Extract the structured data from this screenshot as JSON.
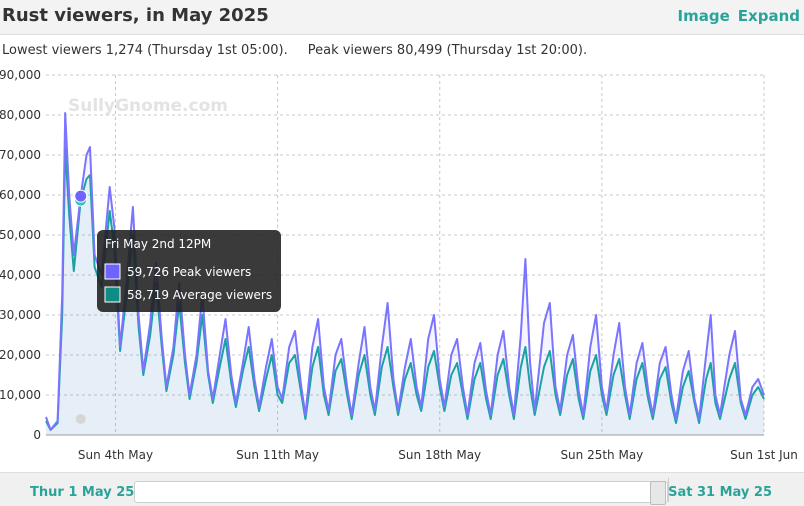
{
  "header": {
    "title": "Rust viewers, in May 2025",
    "links": {
      "image": "Image",
      "expand": "Expand"
    }
  },
  "summary": {
    "lowest": "Lowest viewers 1,274 (Thursday 1st 05:00).",
    "peak": "Peak viewers 80,499 (Thursday 1st 20:00)."
  },
  "watermark": "SullyGnome.com",
  "navigator": {
    "start_label": "Thur 1 May 25",
    "end_label": "Sat 31 May 25"
  },
  "colors": {
    "peak_series": "#7b74ff",
    "average_series": "#14a69b",
    "accent": "#2aa39a"
  },
  "tooltip": {
    "title": "Fri May 2nd 12PM",
    "rows": [
      {
        "value": "59,726",
        "label": "Peak viewers",
        "color": "#6f63ff"
      },
      {
        "value": "58,719",
        "label": "Average viewers",
        "color": "#0f8c84"
      }
    ]
  },
  "chart_data": {
    "type": "line",
    "x_unit": "day of May 2025 (1 = Thu 1 May 00:00)",
    "xlim": [
      1,
      32
    ],
    "ylim": [
      0,
      90000
    ],
    "y_ticks": [
      "0",
      "10,000",
      "20,000",
      "30,000",
      "40,000",
      "50,000",
      "60,000",
      "70,000",
      "80,000",
      "90,000"
    ],
    "x_ticks": [
      {
        "x": 4,
        "label": "Sun 4th May"
      },
      {
        "x": 11,
        "label": "Sun 11th May"
      },
      {
        "x": 18,
        "label": "Sun 18th May"
      },
      {
        "x": 25,
        "label": "Sun 25th May"
      },
      {
        "x": 32,
        "label": "Sun 1st Jun"
      }
    ],
    "grid": true,
    "series": [
      {
        "name": "Peak viewers",
        "points": [
          [
            1.0,
            4500
          ],
          [
            1.2,
            1274
          ],
          [
            1.5,
            3500
          ],
          [
            1.7,
            35000
          ],
          [
            1.83,
            80499
          ],
          [
            2.0,
            60000
          ],
          [
            2.2,
            45000
          ],
          [
            2.5,
            59726
          ],
          [
            2.75,
            70000
          ],
          [
            2.9,
            72000
          ],
          [
            3.1,
            45000
          ],
          [
            3.4,
            40000
          ],
          [
            3.75,
            62000
          ],
          [
            3.95,
            52000
          ],
          [
            4.2,
            22000
          ],
          [
            4.5,
            40000
          ],
          [
            4.75,
            57000
          ],
          [
            5.0,
            30000
          ],
          [
            5.2,
            16000
          ],
          [
            5.5,
            28000
          ],
          [
            5.75,
            43000
          ],
          [
            6.0,
            24000
          ],
          [
            6.2,
            12000
          ],
          [
            6.5,
            22000
          ],
          [
            6.75,
            38000
          ],
          [
            7.0,
            20000
          ],
          [
            7.2,
            10000
          ],
          [
            7.5,
            20000
          ],
          [
            7.75,
            35000
          ],
          [
            8.0,
            16000
          ],
          [
            8.2,
            9000
          ],
          [
            8.5,
            20000
          ],
          [
            8.75,
            29000
          ],
          [
            9.0,
            15000
          ],
          [
            9.2,
            8000
          ],
          [
            9.5,
            18000
          ],
          [
            9.75,
            27000
          ],
          [
            10.0,
            14000
          ],
          [
            10.2,
            7000
          ],
          [
            10.5,
            17000
          ],
          [
            10.75,
            24000
          ],
          [
            11.0,
            12000
          ],
          [
            11.2,
            9000
          ],
          [
            11.5,
            22000
          ],
          [
            11.75,
            26000
          ],
          [
            12.0,
            13000
          ],
          [
            12.2,
            5000
          ],
          [
            12.5,
            22000
          ],
          [
            12.75,
            29000
          ],
          [
            13.0,
            12000
          ],
          [
            13.2,
            6000
          ],
          [
            13.5,
            20000
          ],
          [
            13.75,
            24000
          ],
          [
            14.0,
            12000
          ],
          [
            14.2,
            5000
          ],
          [
            14.5,
            18000
          ],
          [
            14.75,
            27000
          ],
          [
            15.0,
            12000
          ],
          [
            15.2,
            6000
          ],
          [
            15.5,
            22000
          ],
          [
            15.75,
            33000
          ],
          [
            16.0,
            14000
          ],
          [
            16.2,
            6000
          ],
          [
            16.5,
            17000
          ],
          [
            16.75,
            24000
          ],
          [
            17.0,
            12000
          ],
          [
            17.2,
            7000
          ],
          [
            17.5,
            24000
          ],
          [
            17.75,
            30000
          ],
          [
            18.0,
            14000
          ],
          [
            18.2,
            7000
          ],
          [
            18.5,
            20000
          ],
          [
            18.75,
            24000
          ],
          [
            19.0,
            12000
          ],
          [
            19.2,
            5000
          ],
          [
            19.5,
            18000
          ],
          [
            19.75,
            23000
          ],
          [
            20.0,
            11000
          ],
          [
            20.2,
            5000
          ],
          [
            20.5,
            20000
          ],
          [
            20.75,
            26000
          ],
          [
            21.0,
            12000
          ],
          [
            21.2,
            5000
          ],
          [
            21.5,
            25000
          ],
          [
            21.7,
            44000
          ],
          [
            21.9,
            18000
          ],
          [
            22.1,
            6000
          ],
          [
            22.5,
            28000
          ],
          [
            22.75,
            33000
          ],
          [
            23.0,
            12000
          ],
          [
            23.2,
            6000
          ],
          [
            23.5,
            20000
          ],
          [
            23.75,
            25000
          ],
          [
            24.0,
            11000
          ],
          [
            24.2,
            5000
          ],
          [
            24.5,
            22000
          ],
          [
            24.75,
            30000
          ],
          [
            25.0,
            12000
          ],
          [
            25.2,
            6000
          ],
          [
            25.5,
            20000
          ],
          [
            25.75,
            28000
          ],
          [
            26.0,
            12000
          ],
          [
            26.2,
            5000
          ],
          [
            26.5,
            18000
          ],
          [
            26.75,
            23000
          ],
          [
            27.0,
            11000
          ],
          [
            27.2,
            5000
          ],
          [
            27.5,
            18000
          ],
          [
            27.75,
            22000
          ],
          [
            28.0,
            10000
          ],
          [
            28.2,
            4000
          ],
          [
            28.5,
            16000
          ],
          [
            28.75,
            21000
          ],
          [
            29.0,
            9000
          ],
          [
            29.2,
            4000
          ],
          [
            29.5,
            20000
          ],
          [
            29.7,
            30000
          ],
          [
            29.9,
            10000
          ],
          [
            30.1,
            5000
          ],
          [
            30.5,
            20000
          ],
          [
            30.75,
            26000
          ],
          [
            31.0,
            9000
          ],
          [
            31.2,
            5000
          ],
          [
            31.5,
            12000
          ],
          [
            31.75,
            14000
          ],
          [
            32.0,
            10000
          ]
        ]
      },
      {
        "name": "Average viewers",
        "points": [
          [
            1.0,
            3500
          ],
          [
            1.2,
            1274
          ],
          [
            1.5,
            3000
          ],
          [
            1.7,
            30000
          ],
          [
            1.83,
            72000
          ],
          [
            2.0,
            55000
          ],
          [
            2.2,
            41000
          ],
          [
            2.5,
            58719
          ],
          [
            2.75,
            64000
          ],
          [
            2.9,
            65000
          ],
          [
            3.1,
            42000
          ],
          [
            3.4,
            37000
          ],
          [
            3.75,
            56000
          ],
          [
            3.95,
            47000
          ],
          [
            4.2,
            21000
          ],
          [
            4.5,
            36000
          ],
          [
            4.75,
            50000
          ],
          [
            5.0,
            27000
          ],
          [
            5.2,
            15000
          ],
          [
            5.5,
            25000
          ],
          [
            5.75,
            38000
          ],
          [
            6.0,
            22000
          ],
          [
            6.2,
            11000
          ],
          [
            6.5,
            20000
          ],
          [
            6.75,
            33000
          ],
          [
            7.0,
            18000
          ],
          [
            7.2,
            9000
          ],
          [
            7.5,
            18000
          ],
          [
            7.75,
            30000
          ],
          [
            8.0,
            15000
          ],
          [
            8.2,
            8000
          ],
          [
            8.5,
            17000
          ],
          [
            8.75,
            24000
          ],
          [
            9.0,
            13000
          ],
          [
            9.2,
            7000
          ],
          [
            9.5,
            16000
          ],
          [
            9.75,
            22000
          ],
          [
            10.0,
            12000
          ],
          [
            10.2,
            6000
          ],
          [
            10.5,
            14000
          ],
          [
            10.75,
            20000
          ],
          [
            11.0,
            10000
          ],
          [
            11.2,
            8000
          ],
          [
            11.5,
            18000
          ],
          [
            11.75,
            20000
          ],
          [
            12.0,
            11000
          ],
          [
            12.2,
            4000
          ],
          [
            12.5,
            17000
          ],
          [
            12.75,
            22000
          ],
          [
            13.0,
            10000
          ],
          [
            13.2,
            5000
          ],
          [
            13.5,
            16000
          ],
          [
            13.75,
            19000
          ],
          [
            14.0,
            10000
          ],
          [
            14.2,
            4000
          ],
          [
            14.5,
            15000
          ],
          [
            14.75,
            20000
          ],
          [
            15.0,
            10000
          ],
          [
            15.2,
            5000
          ],
          [
            15.5,
            17000
          ],
          [
            15.75,
            22000
          ],
          [
            16.0,
            12000
          ],
          [
            16.2,
            5000
          ],
          [
            16.5,
            14000
          ],
          [
            16.75,
            18000
          ],
          [
            17.0,
            10000
          ],
          [
            17.2,
            6000
          ],
          [
            17.5,
            17000
          ],
          [
            17.75,
            21000
          ],
          [
            18.0,
            12000
          ],
          [
            18.2,
            6000
          ],
          [
            18.5,
            15000
          ],
          [
            18.75,
            18000
          ],
          [
            19.0,
            10000
          ],
          [
            19.2,
            4000
          ],
          [
            19.5,
            14000
          ],
          [
            19.75,
            18000
          ],
          [
            20.0,
            9000
          ],
          [
            20.2,
            4000
          ],
          [
            20.5,
            15000
          ],
          [
            20.75,
            19000
          ],
          [
            21.0,
            10000
          ],
          [
            21.2,
            4000
          ],
          [
            21.5,
            17000
          ],
          [
            21.7,
            22000
          ],
          [
            21.9,
            12000
          ],
          [
            22.1,
            5000
          ],
          [
            22.5,
            17000
          ],
          [
            22.75,
            21000
          ],
          [
            23.0,
            10000
          ],
          [
            23.2,
            5000
          ],
          [
            23.5,
            15000
          ],
          [
            23.75,
            19000
          ],
          [
            24.0,
            9000
          ],
          [
            24.2,
            4000
          ],
          [
            24.5,
            16000
          ],
          [
            24.75,
            20000
          ],
          [
            25.0,
            10000
          ],
          [
            25.2,
            5000
          ],
          [
            25.5,
            15000
          ],
          [
            25.75,
            19000
          ],
          [
            26.0,
            10000
          ],
          [
            26.2,
            4000
          ],
          [
            26.5,
            14000
          ],
          [
            26.75,
            18000
          ],
          [
            27.0,
            9000
          ],
          [
            27.2,
            4000
          ],
          [
            27.5,
            14000
          ],
          [
            27.75,
            17000
          ],
          [
            28.0,
            8000
          ],
          [
            28.2,
            3000
          ],
          [
            28.5,
            12000
          ],
          [
            28.75,
            16000
          ],
          [
            29.0,
            8000
          ],
          [
            29.2,
            3000
          ],
          [
            29.5,
            14000
          ],
          [
            29.7,
            18000
          ],
          [
            29.9,
            8000
          ],
          [
            30.1,
            4000
          ],
          [
            30.5,
            14000
          ],
          [
            30.75,
            18000
          ],
          [
            31.0,
            8000
          ],
          [
            31.2,
            4000
          ],
          [
            31.5,
            10000
          ],
          [
            31.75,
            12000
          ],
          [
            32.0,
            9000
          ]
        ]
      }
    ],
    "hover": {
      "x": 2.5,
      "peak": 59726,
      "average": 58719
    }
  }
}
